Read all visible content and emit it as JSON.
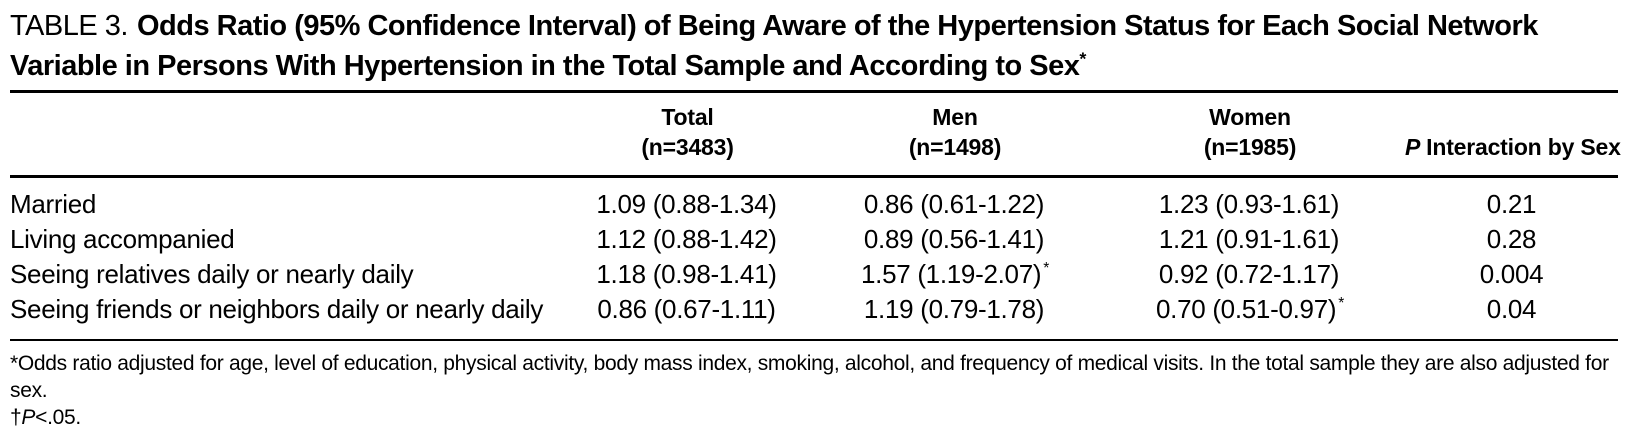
{
  "title": {
    "label": "TABLE 3.",
    "text": "Odds Ratio (95% Confidence Interval) of Being Aware of the Hypertension Status for Each Social Network Variable in Persons With Hypertension in the Total Sample and According to Sex",
    "marker": "*"
  },
  "table": {
    "columns": {
      "total": {
        "label": "Total",
        "n": "(n=3483)"
      },
      "men": {
        "label": "Men",
        "n": "(n=1498)"
      },
      "women": {
        "label": "Women",
        "n": "(n=1985)"
      },
      "p_interaction": {
        "label_italic": "P",
        "label_rest": "Interaction by Sex"
      }
    },
    "rows": [
      {
        "label": "Married",
        "total": "1.09 (0.88-1.34)",
        "total_flag": "",
        "men": "0.86 (0.61-1.22)",
        "men_flag": "",
        "women": "1.23 (0.93-1.61)",
        "women_flag": "",
        "p": "0.21"
      },
      {
        "label": "Living accompanied",
        "total": "1.12 (0.88-1.42)",
        "total_flag": "",
        "men": "0.89 (0.56-1.41)",
        "men_flag": "",
        "women": "1.21 (0.91-1.61)",
        "women_flag": "",
        "p": "0.28"
      },
      {
        "label": "Seeing relatives daily or nearly daily",
        "total": "1.18 (0.98-1.41)",
        "total_flag": "",
        "men": "1.57 (1.19-2.07)",
        "men_flag": "*",
        "women": "0.92 (0.72-1.17)",
        "women_flag": "",
        "p": "0.004"
      },
      {
        "label": "Seeing friends or neighbors daily or nearly daily",
        "total": "0.86 (0.67-1.11)",
        "total_flag": "",
        "men": "1.19 (0.79-1.78)",
        "men_flag": "",
        "women": "0.70 (0.51-0.97)",
        "women_flag": "*",
        "p": "0.04"
      }
    ]
  },
  "footnotes": {
    "adjustment": {
      "marker": "*",
      "text": "Odds ratio adjusted for age, level of education, physical activity, body mass index, smoking, alcohol, and frequency of medical visits. In the total sample they are also adjusted for sex."
    },
    "significance": {
      "marker": "†",
      "p": "P",
      "text": "<.05."
    }
  },
  "colors": {
    "text": "#000000",
    "background": "#ffffff",
    "rule": "#000000"
  }
}
